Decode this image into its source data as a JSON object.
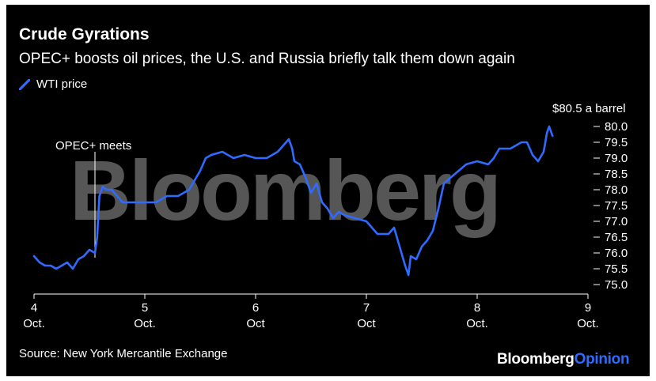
{
  "title": "Crude Gyrations",
  "subtitle": "OPEC+ boosts oil prices, the U.S. and Russia briefly talk them down again",
  "source": "Source: New York Mercantile Exchange",
  "watermark": "Bloomberg",
  "brand": {
    "main": "Bloomberg",
    "accent": "Opinion"
  },
  "colors": {
    "line": "#2f6bff",
    "background": "#000000",
    "text": "#ffffff"
  },
  "chart_data": {
    "type": "line",
    "title": "Crude Gyrations",
    "subtitle": "OPEC+ boosts oil prices, the U.S. and Russia briefly talk them down again",
    "xlabel": "",
    "ylabel": "",
    "xlim": [
      4,
      9
    ],
    "ylim": [
      75.0,
      80.0
    ],
    "x_ticks": [
      {
        "value": 4,
        "label": "4",
        "sub": "Oct."
      },
      {
        "value": 5,
        "label": "5",
        "sub": "Oct."
      },
      {
        "value": 6,
        "label": "6",
        "sub": "Oct"
      },
      {
        "value": 7,
        "label": "7",
        "sub": "Oct"
      },
      {
        "value": 8,
        "label": "8",
        "sub": "Oct."
      },
      {
        "value": 9,
        "label": "9",
        "sub": "Oct."
      }
    ],
    "y_ticks": [
      75.0,
      75.5,
      76.0,
      76.5,
      77.0,
      77.5,
      78.0,
      78.5,
      79.0,
      79.5,
      80.0
    ],
    "y_tick_labels": [
      "75.0",
      "75.5",
      "76.0",
      "76.5",
      "77.0",
      "77.5",
      "78.0",
      "78.5",
      "79.0",
      "79.5",
      "80.0"
    ],
    "y_unit_label": "$80.5 a barrel",
    "annotations": [
      {
        "x": 4.55,
        "text": "OPEC+ meets"
      }
    ],
    "series": [
      {
        "name": "WTI price",
        "x": [
          4.0,
          4.05,
          4.1,
          4.15,
          4.2,
          4.25,
          4.3,
          4.35,
          4.4,
          4.45,
          4.5,
          4.55,
          4.57,
          4.59,
          4.62,
          4.65,
          4.7,
          4.75,
          4.8,
          4.9,
          5.0,
          5.1,
          5.2,
          5.3,
          5.4,
          5.5,
          5.55,
          5.6,
          5.7,
          5.8,
          5.9,
          6.0,
          6.1,
          6.2,
          6.3,
          6.33,
          6.35,
          6.4,
          6.45,
          6.5,
          6.55,
          6.6,
          6.65,
          6.7,
          6.75,
          6.8,
          6.9,
          7.0,
          7.1,
          7.2,
          7.25,
          7.3,
          7.35,
          7.38,
          7.4,
          7.45,
          7.5,
          7.55,
          7.6,
          7.65,
          7.7,
          7.8,
          7.9,
          8.0,
          8.1,
          8.15,
          8.2,
          8.3,
          8.4,
          8.45,
          8.5,
          8.55,
          8.6,
          8.63,
          8.65,
          8.68
        ],
        "y": [
          75.9,
          75.7,
          75.6,
          75.6,
          75.5,
          75.6,
          75.7,
          75.5,
          75.8,
          75.9,
          76.1,
          76.0,
          76.5,
          77.8,
          78.1,
          78.0,
          78.0,
          77.8,
          77.6,
          77.6,
          77.6,
          77.6,
          77.8,
          77.8,
          78.0,
          78.6,
          79.0,
          79.1,
          79.2,
          79.0,
          79.1,
          79.0,
          79.0,
          79.2,
          79.6,
          79.3,
          78.9,
          78.8,
          78.4,
          77.9,
          78.2,
          77.6,
          77.4,
          77.1,
          77.3,
          77.2,
          77.1,
          77.0,
          76.6,
          76.6,
          76.8,
          76.2,
          75.6,
          75.3,
          75.9,
          75.8,
          76.2,
          76.4,
          76.7,
          77.4,
          78.2,
          78.5,
          78.8,
          78.9,
          78.8,
          79.0,
          79.3,
          79.3,
          79.5,
          79.5,
          79.1,
          78.9,
          79.2,
          79.8,
          80.0,
          79.7
        ]
      }
    ]
  }
}
